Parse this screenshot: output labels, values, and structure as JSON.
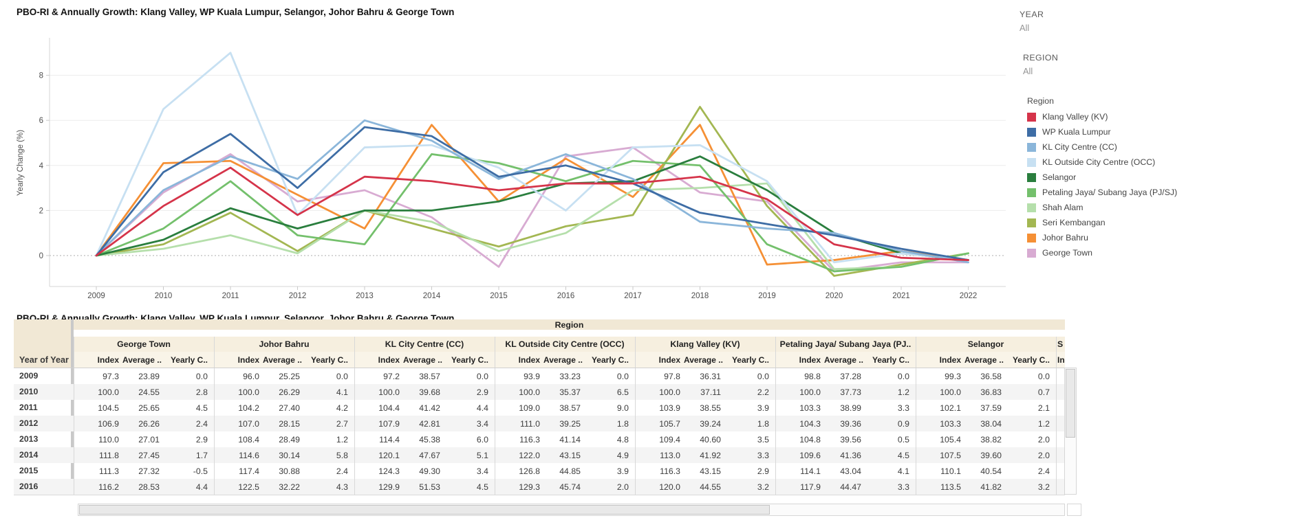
{
  "header": {
    "chart_title": "PBO-RI & Annually Growth: Klang Valley, WP Kuala Lumpur, Selangor, Johor Bahru & George Town"
  },
  "filters": [
    {
      "label": "YEAR",
      "value": "All"
    },
    {
      "label": "REGION",
      "value": "All"
    }
  ],
  "legend": {
    "title": "Region"
  },
  "chart_data": {
    "type": "line",
    "title": "PBO-RI & Annually Growth: Klang Valley, WP Kuala Lumpur, Selangor, Johor Bahru & George Town",
    "xlabel": "",
    "ylabel": "Yearly Change (%)",
    "x": [
      "2009",
      "2010",
      "2011",
      "2012",
      "2013",
      "2014",
      "2015",
      "2016",
      "2017",
      "2018",
      "2019",
      "2020",
      "2021",
      "2022"
    ],
    "yticks": [
      0,
      2,
      4,
      6,
      8
    ],
    "ylim": [
      -1.3,
      9.6
    ],
    "grid": true,
    "legend_position": "right",
    "series": [
      {
        "name": "Klang Valley (KV)",
        "color": "#d5344a",
        "values": [
          0.0,
          2.2,
          3.9,
          1.8,
          3.5,
          3.3,
          2.9,
          3.2,
          3.2,
          3.5,
          2.5,
          0.5,
          -0.1,
          -0.2
        ]
      },
      {
        "name": "WP Kuala Lumpur",
        "color": "#3e6da5",
        "values": [
          0.0,
          3.7,
          5.4,
          3.0,
          5.7,
          5.3,
          3.5,
          4.0,
          3.2,
          1.9,
          1.4,
          0.9,
          0.3,
          -0.2
        ]
      },
      {
        "name": "KL City Centre (CC)",
        "color": "#8bb6da",
        "values": [
          0.0,
          2.9,
          4.4,
          3.4,
          6.0,
          5.1,
          3.4,
          4.5,
          3.4,
          1.5,
          1.2,
          1.0,
          0.2,
          -0.3
        ]
      },
      {
        "name": "KL Outside City Centre (OCC)",
        "color": "#c7e0f2",
        "values": [
          0.0,
          6.5,
          9.0,
          1.8,
          4.8,
          4.9,
          3.9,
          2.0,
          4.8,
          4.9,
          3.3,
          -0.3,
          0.1,
          -0.2
        ]
      },
      {
        "name": "Selangor",
        "color": "#2a7e3e",
        "values": [
          0.0,
          0.7,
          2.1,
          1.2,
          2.0,
          2.0,
          2.4,
          3.2,
          3.3,
          4.4,
          2.9,
          1.0,
          0.1,
          -0.2
        ]
      },
      {
        "name": "Petaling Jaya/ Subang Jaya (PJ/SJ)",
        "color": "#74c06c",
        "values": [
          0.0,
          1.2,
          3.3,
          0.9,
          0.5,
          4.5,
          4.1,
          3.3,
          4.2,
          4.0,
          0.5,
          -0.7,
          -0.5,
          0.1
        ]
      },
      {
        "name": "Shah Alam",
        "color": "#b5dfab",
        "values": [
          0.0,
          0.3,
          0.9,
          0.1,
          2.0,
          1.5,
          0.2,
          1.0,
          2.9,
          3.0,
          3.2,
          -0.6,
          -0.5,
          0.1
        ]
      },
      {
        "name": "Seri Kembangan",
        "color": "#a3b752",
        "values": [
          0.0,
          0.5,
          1.9,
          0.2,
          2.0,
          1.2,
          0.4,
          1.3,
          1.8,
          6.6,
          2.2,
          -0.9,
          -0.4,
          0.1
        ]
      },
      {
        "name": "Johor Bahru",
        "color": "#f59035",
        "values": [
          0.0,
          4.1,
          4.2,
          2.7,
          1.2,
          5.8,
          2.4,
          4.3,
          2.6,
          5.8,
          -0.4,
          -0.2,
          0.2,
          -0.2
        ]
      },
      {
        "name": "George Town",
        "color": "#d8abd2",
        "values": [
          0.0,
          2.8,
          4.5,
          2.4,
          2.9,
          1.7,
          -0.5,
          4.4,
          4.8,
          2.8,
          2.4,
          -0.7,
          -0.3,
          -0.3
        ]
      }
    ]
  },
  "table": {
    "title": "PBO-RI & Annually Growth: Klang Valley, WP Kuala Lumpur, Selangor, Johor Bahru & George Town",
    "region_header": "Region",
    "row_header": "Year of Year",
    "col_headers": [
      "Index",
      "Average ..",
      "Yearly C.."
    ],
    "partial_group": {
      "name": "S",
      "sub": "In"
    },
    "years": [
      "2009",
      "2010",
      "2011",
      "2012",
      "2013",
      "2014",
      "2015",
      "2016"
    ],
    "groups": [
      {
        "name": "George Town",
        "rows": [
          [
            97.3,
            23.89,
            0.0
          ],
          [
            100.0,
            24.55,
            2.8
          ],
          [
            104.5,
            25.65,
            4.5
          ],
          [
            106.9,
            26.26,
            2.4
          ],
          [
            110.0,
            27.01,
            2.9
          ],
          [
            111.8,
            27.45,
            1.7
          ],
          [
            111.3,
            27.32,
            -0.5
          ],
          [
            116.2,
            28.53,
            4.4
          ]
        ]
      },
      {
        "name": "Johor Bahru",
        "rows": [
          [
            96.0,
            25.25,
            0.0
          ],
          [
            100.0,
            26.29,
            4.1
          ],
          [
            104.2,
            27.4,
            4.2
          ],
          [
            107.0,
            28.15,
            2.7
          ],
          [
            108.4,
            28.49,
            1.2
          ],
          [
            114.6,
            30.14,
            5.8
          ],
          [
            117.4,
            30.88,
            2.4
          ],
          [
            122.5,
            32.22,
            4.3
          ]
        ]
      },
      {
        "name": "KL City Centre (CC)",
        "rows": [
          [
            97.2,
            38.57,
            0.0
          ],
          [
            100.0,
            39.68,
            2.9
          ],
          [
            104.4,
            41.42,
            4.4
          ],
          [
            107.9,
            42.81,
            3.4
          ],
          [
            114.4,
            45.38,
            6.0
          ],
          [
            120.1,
            47.67,
            5.1
          ],
          [
            124.3,
            49.3,
            3.4
          ],
          [
            129.9,
            51.53,
            4.5
          ]
        ]
      },
      {
        "name": "KL Outside City Centre (OCC)",
        "rows": [
          [
            93.9,
            33.23,
            0.0
          ],
          [
            100.0,
            35.37,
            6.5
          ],
          [
            109.0,
            38.57,
            9.0
          ],
          [
            111.0,
            39.25,
            1.8
          ],
          [
            116.3,
            41.14,
            4.8
          ],
          [
            122.0,
            43.15,
            4.9
          ],
          [
            126.8,
            44.85,
            3.9
          ],
          [
            129.3,
            45.74,
            2.0
          ]
        ]
      },
      {
        "name": "Klang Valley (KV)",
        "rows": [
          [
            97.8,
            36.31,
            0.0
          ],
          [
            100.0,
            37.11,
            2.2
          ],
          [
            103.9,
            38.55,
            3.9
          ],
          [
            105.7,
            39.24,
            1.8
          ],
          [
            109.4,
            40.6,
            3.5
          ],
          [
            113.0,
            41.92,
            3.3
          ],
          [
            116.3,
            43.15,
            2.9
          ],
          [
            120.0,
            44.55,
            3.2
          ]
        ]
      },
      {
        "name": "Petaling Jaya/ Subang Jaya (PJ..",
        "rows": [
          [
            98.8,
            37.28,
            0.0
          ],
          [
            100.0,
            37.73,
            1.2
          ],
          [
            103.3,
            38.99,
            3.3
          ],
          [
            104.3,
            39.36,
            0.9
          ],
          [
            104.8,
            39.56,
            0.5
          ],
          [
            109.6,
            41.36,
            4.5
          ],
          [
            114.1,
            43.04,
            4.1
          ],
          [
            117.9,
            44.47,
            3.3
          ]
        ]
      },
      {
        "name": "Selangor",
        "rows": [
          [
            99.3,
            36.58,
            0.0
          ],
          [
            100.0,
            36.83,
            0.7
          ],
          [
            102.1,
            37.59,
            2.1
          ],
          [
            103.3,
            38.04,
            1.2
          ],
          [
            105.4,
            38.82,
            2.0
          ],
          [
            107.5,
            39.6,
            2.0
          ],
          [
            110.1,
            40.54,
            2.4
          ],
          [
            113.5,
            41.82,
            3.2
          ]
        ]
      }
    ]
  },
  "colors": {
    "gridline": "#ebebeb",
    "zero_line": "#ababab",
    "axis_line": "#d4d4d4",
    "axis_text": "#4e4e4e",
    "header_cream": "#f1e8d5",
    "row_alt": "#f4f4f4"
  }
}
